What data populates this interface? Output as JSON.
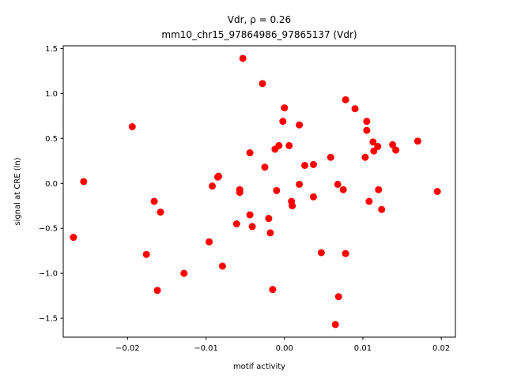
{
  "chart_data": {
    "type": "scatter",
    "title_line1": "Vdr, ρ = 0.26",
    "title_line2": "mm10_chr15_97864986_97865137 (Vdr)",
    "xlabel": "motif activity",
    "ylabel": "signal at CRE (ln)",
    "xlim": [
      -0.0282,
      0.0218
    ],
    "ylim": [
      -1.71,
      1.53
    ],
    "xticks": [
      -0.02,
      -0.01,
      0.0,
      0.01,
      0.02
    ],
    "xtick_labels": [
      "−0.02",
      "−0.01",
      "0.00",
      "0.01",
      "0.02"
    ],
    "yticks": [
      -1.5,
      -1.0,
      -0.5,
      0.0,
      0.5,
      1.0,
      1.5
    ],
    "ytick_labels": [
      "−1.5",
      "−1.0",
      "−0.5",
      "0.0",
      "0.5",
      "1.0",
      "1.5"
    ],
    "grid": false,
    "marker_color": "#ff0000",
    "points": [
      [
        -0.0269,
        -0.6
      ],
      [
        -0.0256,
        0.02
      ],
      [
        -0.0194,
        0.63
      ],
      [
        -0.0176,
        -0.79
      ],
      [
        -0.0166,
        -0.2
      ],
      [
        -0.0162,
        -1.19
      ],
      [
        -0.0158,
        -0.32
      ],
      [
        -0.0128,
        -1.0
      ],
      [
        -0.0096,
        -0.65
      ],
      [
        -0.0092,
        -0.03
      ],
      [
        -0.0085,
        0.07
      ],
      [
        -0.0084,
        0.08
      ],
      [
        -0.0079,
        -0.92
      ],
      [
        -0.0061,
        -0.45
      ],
      [
        -0.0057,
        -0.07
      ],
      [
        -0.0057,
        -0.1
      ],
      [
        -0.0053,
        1.39
      ],
      [
        -0.0044,
        0.34
      ],
      [
        -0.0044,
        -0.35
      ],
      [
        -0.0041,
        -0.48
      ],
      [
        -0.0028,
        1.11
      ],
      [
        -0.0025,
        0.18
      ],
      [
        -0.002,
        -0.39
      ],
      [
        -0.0018,
        -0.55
      ],
      [
        -0.0015,
        -1.18
      ],
      [
        -0.0012,
        0.38
      ],
      [
        -0.001,
        -0.08
      ],
      [
        -0.0007,
        0.42
      ],
      [
        -0.0002,
        0.69
      ],
      [
        0.0,
        0.84
      ],
      [
        0.0006,
        0.42
      ],
      [
        0.0009,
        -0.2
      ],
      [
        0.001,
        -0.25
      ],
      [
        0.0019,
        0.65
      ],
      [
        0.0019,
        -0.01
      ],
      [
        0.0026,
        0.2
      ],
      [
        0.0037,
        0.21
      ],
      [
        0.0037,
        -0.15
      ],
      [
        0.0047,
        -0.77
      ],
      [
        0.0059,
        0.29
      ],
      [
        0.0065,
        -1.57
      ],
      [
        0.0068,
        -0.01
      ],
      [
        0.0069,
        -1.26
      ],
      [
        0.0075,
        -0.07
      ],
      [
        0.0078,
        -0.78
      ],
      [
        0.0078,
        0.93
      ],
      [
        0.009,
        0.83
      ],
      [
        0.0103,
        0.29
      ],
      [
        0.0105,
        0.69
      ],
      [
        0.0105,
        0.59
      ],
      [
        0.0108,
        -0.2
      ],
      [
        0.0113,
        0.46
      ],
      [
        0.0114,
        0.36
      ],
      [
        0.0119,
        0.41
      ],
      [
        0.012,
        -0.07
      ],
      [
        0.0124,
        -0.29
      ],
      [
        0.0138,
        0.43
      ],
      [
        0.0142,
        0.37
      ],
      [
        0.017,
        0.47
      ],
      [
        0.0195,
        -0.09
      ]
    ]
  }
}
